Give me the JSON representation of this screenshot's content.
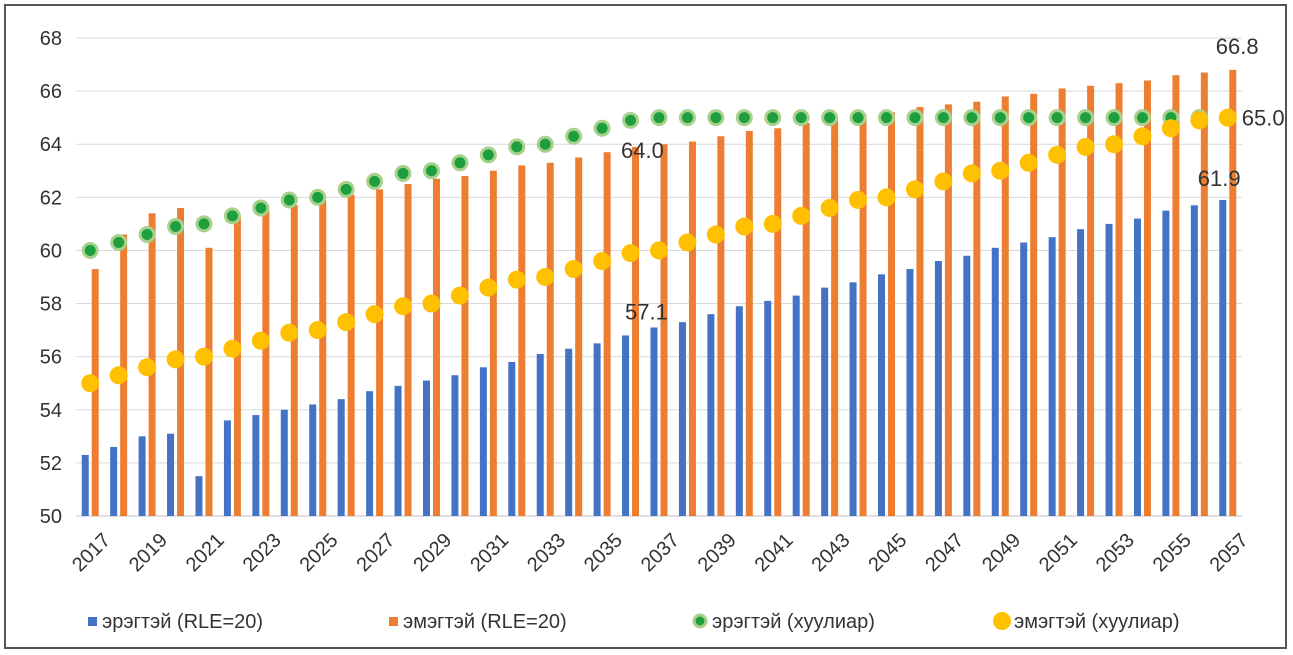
{
  "chart_data": {
    "type": "bar",
    "title": "",
    "xlabel": "",
    "ylabel": "",
    "ylim": [
      50,
      68
    ],
    "yticks": [
      50,
      52,
      54,
      56,
      58,
      60,
      62,
      64,
      66,
      68
    ],
    "grid": true,
    "legend_position": "bottom",
    "x": [
      2017,
      2018,
      2019,
      2020,
      2021,
      2022,
      2023,
      2024,
      2025,
      2026,
      2027,
      2028,
      2029,
      2030,
      2031,
      2032,
      2033,
      2034,
      2035,
      2036,
      2037,
      2038,
      2039,
      2040,
      2041,
      2042,
      2043,
      2044,
      2045,
      2046,
      2047,
      2048,
      2049,
      2050,
      2051,
      2052,
      2053,
      2054,
      2055,
      2056,
      2057
    ],
    "x_tick_labels": [
      "2017",
      "2019",
      "2021",
      "2023",
      "2025",
      "2027",
      "2029",
      "2031",
      "2033",
      "2035",
      "2037",
      "2039",
      "2041",
      "2043",
      "2045",
      "2047",
      "2049",
      "2051",
      "2053",
      "2055",
      "2057"
    ],
    "series": [
      {
        "name": "эрэгтэй (RLE=20)",
        "kind": "bar",
        "color": "#4472C4",
        "values": [
          52.3,
          52.6,
          53.0,
          53.1,
          51.5,
          53.6,
          53.8,
          54.0,
          54.2,
          54.4,
          54.7,
          54.9,
          55.1,
          55.3,
          55.6,
          55.8,
          56.1,
          56.3,
          56.5,
          56.8,
          57.1,
          57.3,
          57.6,
          57.9,
          58.1,
          58.3,
          58.6,
          58.8,
          59.1,
          59.3,
          59.6,
          59.8,
          60.1,
          60.3,
          60.5,
          60.8,
          61.0,
          61.2,
          61.5,
          61.7,
          61.9
        ]
      },
      {
        "name": "эмэгтэй (RLE=20)",
        "kind": "bar",
        "color": "#ED7D31",
        "values": [
          59.3,
          60.6,
          61.4,
          61.6,
          60.1,
          61.3,
          61.5,
          61.7,
          61.9,
          62.1,
          62.3,
          62.5,
          62.7,
          62.8,
          63.0,
          63.2,
          63.3,
          63.5,
          63.7,
          63.9,
          64.0,
          64.1,
          64.3,
          64.5,
          64.6,
          64.8,
          64.9,
          65.1,
          65.2,
          65.4,
          65.5,
          65.6,
          65.8,
          65.9,
          66.1,
          66.2,
          66.3,
          66.4,
          66.6,
          66.7,
          66.8
        ]
      },
      {
        "name": "эрэгтэй (хуулиар)",
        "kind": "dot",
        "color": "#1E9E3C",
        "stroke": "#A9D18E",
        "values": [
          60.0,
          60.3,
          60.6,
          60.9,
          61.0,
          61.3,
          61.6,
          61.9,
          62.0,
          62.3,
          62.6,
          62.9,
          63.0,
          63.3,
          63.6,
          63.9,
          64.0,
          64.3,
          64.6,
          64.9,
          65.0,
          65.0,
          65.0,
          65.0,
          65.0,
          65.0,
          65.0,
          65.0,
          65.0,
          65.0,
          65.0,
          65.0,
          65.0,
          65.0,
          65.0,
          65.0,
          65.0,
          65.0,
          65.0,
          65.0,
          65.0
        ]
      },
      {
        "name": "эмэгтэй (хуулиар)",
        "kind": "dot",
        "color": "#FFC000",
        "stroke": "#FFC000",
        "values": [
          55.0,
          55.3,
          55.6,
          55.9,
          56.0,
          56.3,
          56.6,
          56.9,
          57.0,
          57.3,
          57.6,
          57.9,
          58.0,
          58.3,
          58.6,
          58.9,
          59.0,
          59.3,
          59.6,
          59.9,
          60.0,
          60.3,
          60.6,
          60.9,
          61.0,
          61.3,
          61.6,
          61.9,
          62.0,
          62.3,
          62.6,
          62.9,
          63.0,
          63.3,
          63.6,
          63.9,
          64.0,
          64.3,
          64.6,
          64.9,
          65.0
        ]
      }
    ],
    "annotations": [
      {
        "text": "66.8",
        "x": 2057,
        "y": 66.8,
        "color": "#333333"
      },
      {
        "text": "65.0",
        "x": 2057,
        "y": 65.0,
        "color": "#E8202A"
      },
      {
        "text": "64.0",
        "x": 2037,
        "y": 64.0,
        "color": "#333333"
      },
      {
        "text": "61.9",
        "x": 2057,
        "y": 61.9,
        "color": "#333333"
      },
      {
        "text": "57.1",
        "x": 2037,
        "y": 57.1,
        "color": "#333333"
      }
    ]
  }
}
